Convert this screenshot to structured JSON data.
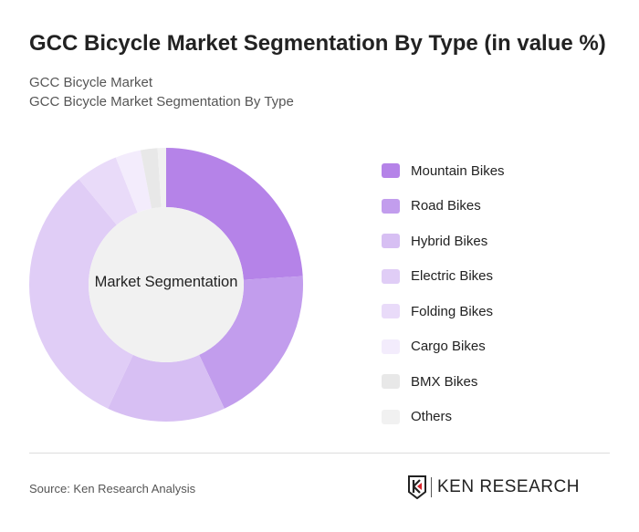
{
  "title": "GCC Bicycle Market Segmentation By Type (in value %)",
  "subtitle1": "GCC Bicycle Market",
  "subtitle2": "GCC Bicycle Market Segmentation By Type",
  "source": "Source: Ken Research Analysis",
  "logo_text": "KEN RESEARCH",
  "chart_data": {
    "type": "pie",
    "variant": "donut",
    "center_label": "Market Segmentation",
    "legend_position": "right",
    "categories": [
      "Mountain Bikes",
      "Road Bikes",
      "Hybrid Bikes",
      "Electric Bikes",
      "Folding Bikes",
      "Cargo Bikes",
      "BMX Bikes",
      "Others"
    ],
    "values": [
      24,
      19,
      14,
      32,
      5,
      3,
      2,
      1
    ],
    "colors": [
      "#b583e8",
      "#c29ded",
      "#d7bff3",
      "#e0cdf6",
      "#e9dbf9",
      "#f3ecfc",
      "#e8e8e8",
      "#f1f1f1"
    ]
  }
}
